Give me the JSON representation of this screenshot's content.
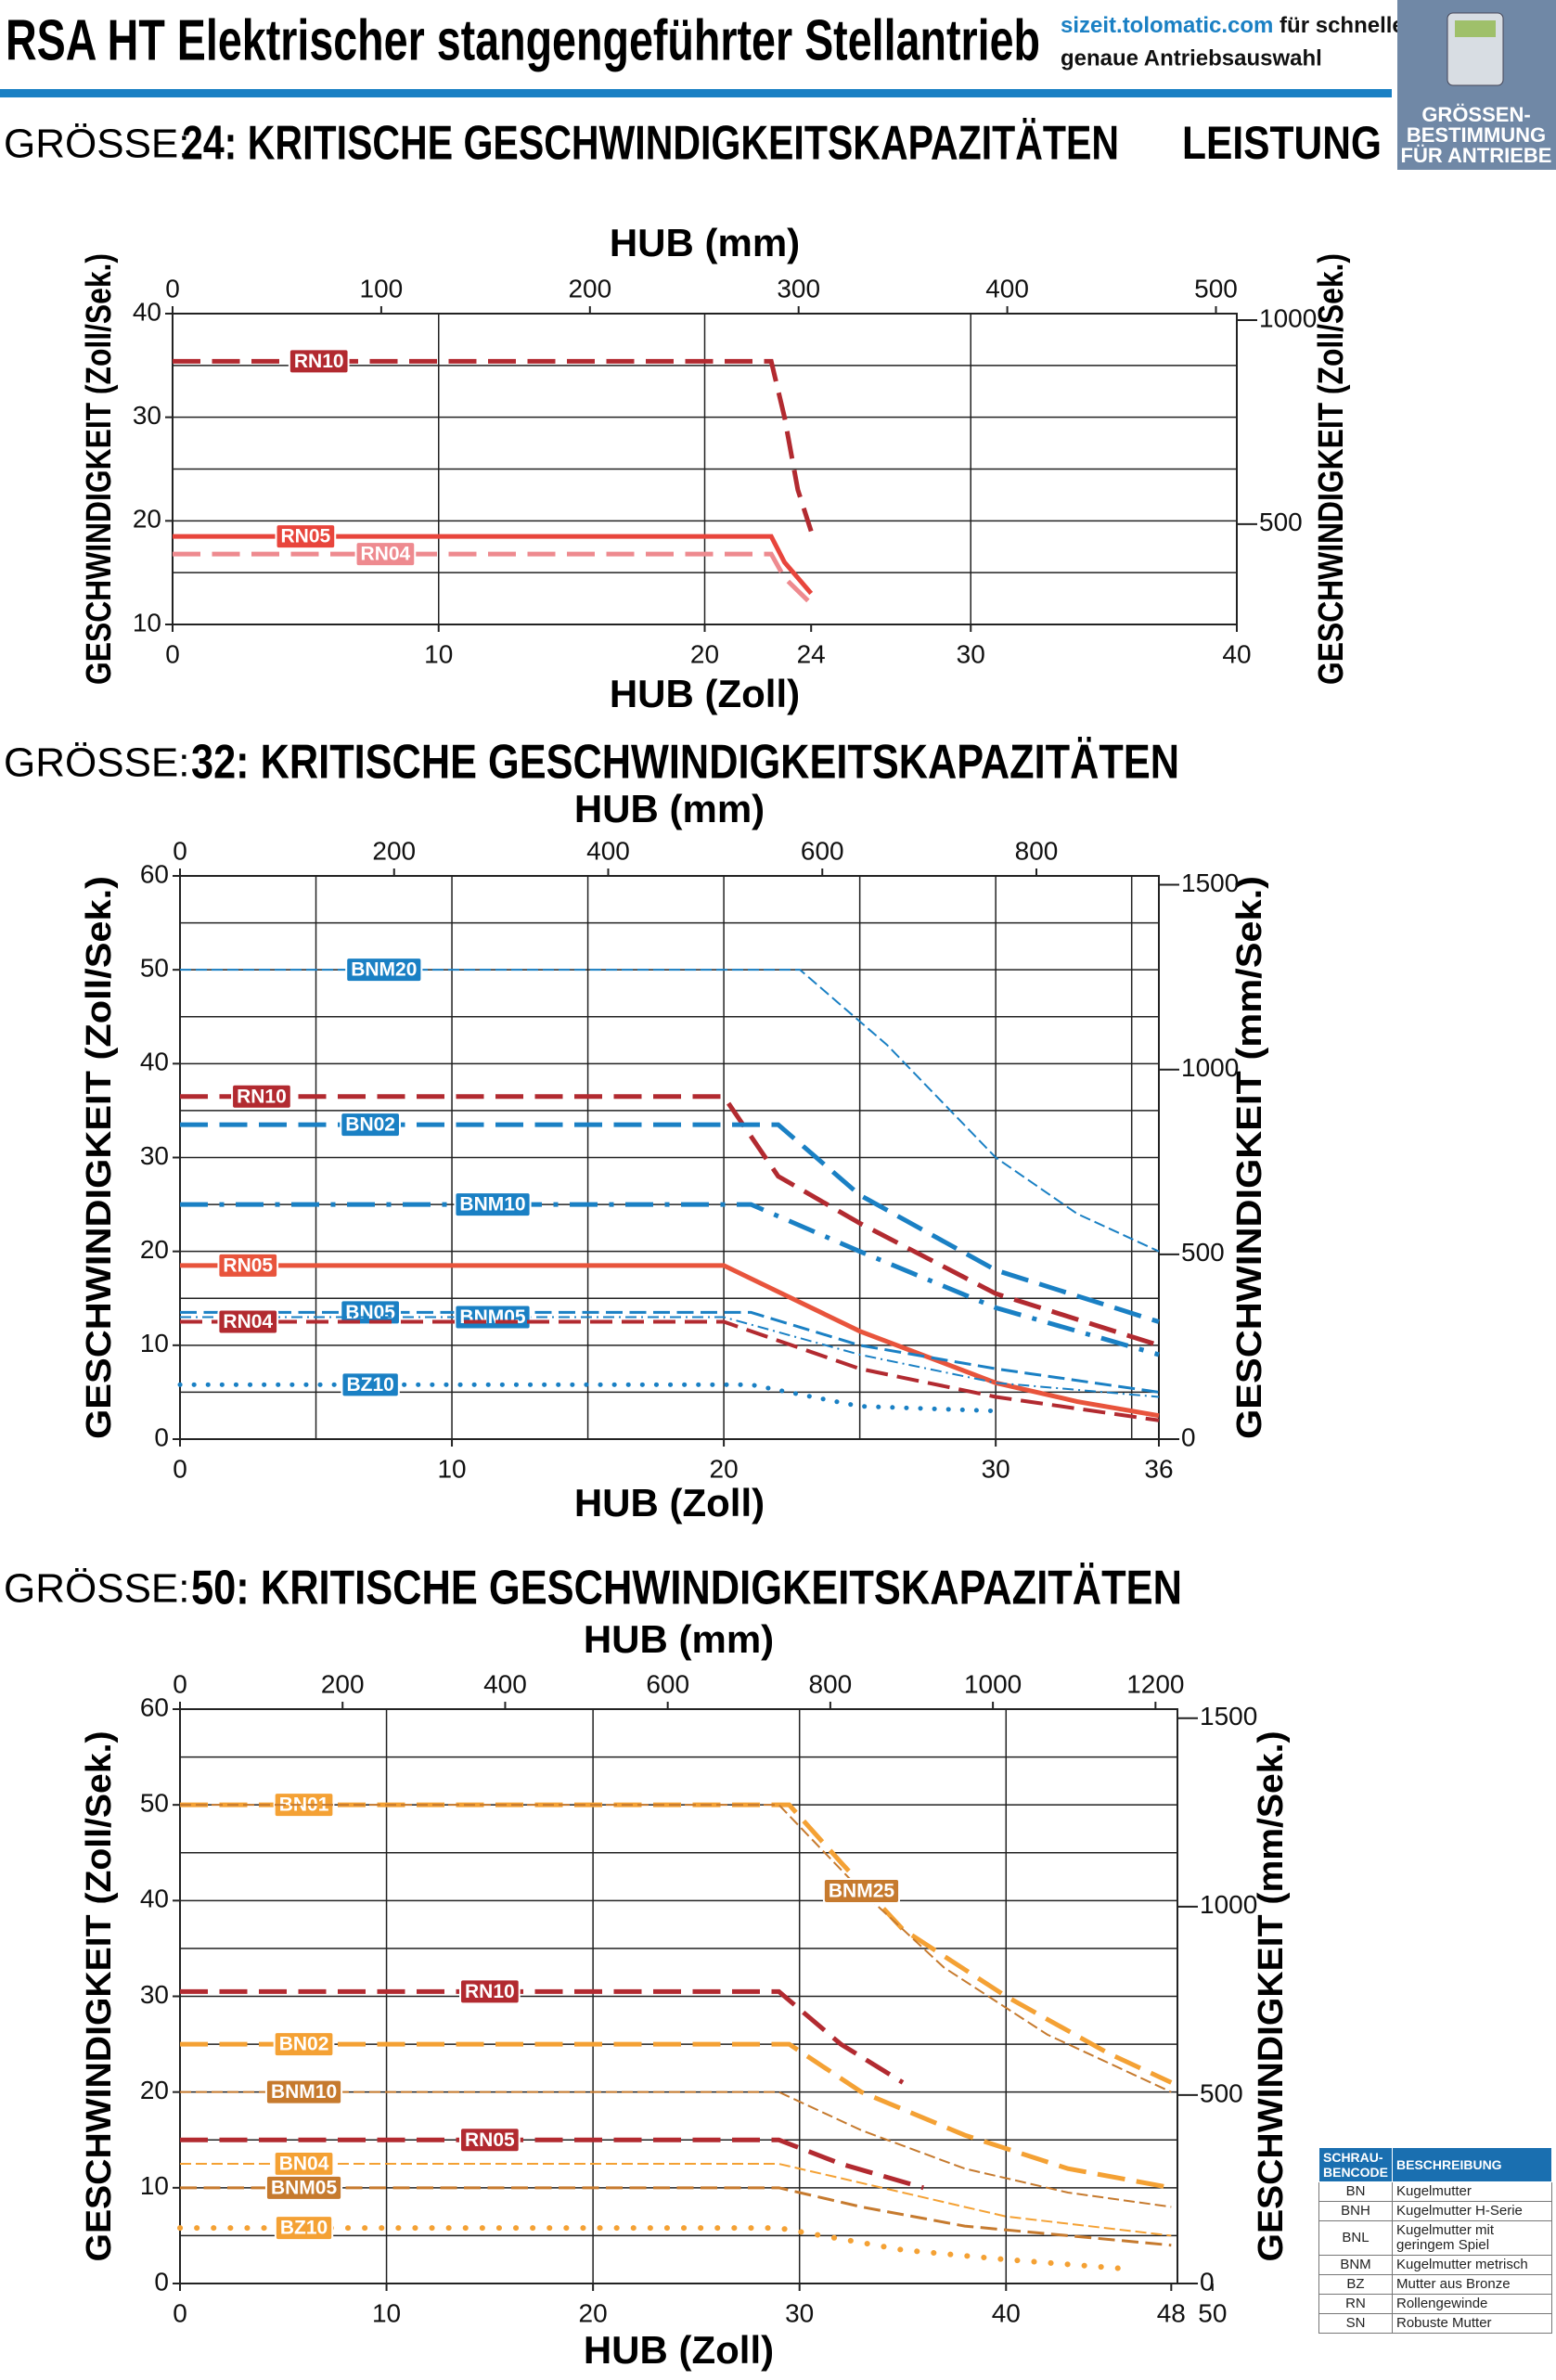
{
  "header": {
    "title": "RSA HT Elektrischer stangengeführter Stellantrieb",
    "link": "sizeit.tolomatic.com",
    "link_text": " für schnelle,",
    "link_text2": "genaue Antriebsauswahl",
    "badge": [
      "GRÖSSEN-",
      "BESTIMMUNG",
      "FÜR ANTRIEBE"
    ],
    "section": "LEISTUNG"
  },
  "chart_data": [
    {
      "type": "line",
      "size_label": "GRÖSSE:",
      "title": "24: KRITISCHE GESCHWINDIGKEITSKAPAZITÄTEN",
      "x_label_top": "HUB (mm)",
      "x_label": "HUB (Zoll)",
      "y_label": "GESCHWINDIGKEIT (Zoll/Sek.)",
      "y2_label": "GESCHWINDIGKEIT (Zoll/Sek.)",
      "xlim": [
        0,
        40
      ],
      "xticks": [
        0,
        10,
        20,
        24,
        30,
        40
      ],
      "x2lim": [
        0,
        510
      ],
      "x2ticks": [
        0,
        100,
        200,
        300,
        400,
        500
      ],
      "ylim": [
        10,
        40
      ],
      "yticks": [
        10,
        20,
        30,
        40
      ],
      "y2lim": [
        254,
        1016
      ],
      "y2ticks": [
        500,
        1000
      ],
      "xgrid": [
        10,
        20,
        30
      ],
      "ygrid": [
        15,
        20,
        25,
        30,
        35
      ],
      "series": [
        {
          "name": "RN10",
          "color": "#b22a30",
          "style": "dashed",
          "width": 5,
          "x": [
            0,
            22.5,
            23,
            23.5,
            24
          ],
          "values": [
            35.4,
            35.4,
            30,
            23,
            19
          ]
        },
        {
          "name": "RN05",
          "color": "#e8453c",
          "style": "solid",
          "width": 5,
          "x": [
            0,
            22.5,
            23,
            24
          ],
          "values": [
            18.5,
            18.5,
            16,
            13
          ]
        },
        {
          "name": "RN04",
          "color": "#ee8a8f",
          "style": "dashed",
          "width": 5,
          "x": [
            0,
            22.5,
            23,
            24
          ],
          "values": [
            16.8,
            16.8,
            14.5,
            12
          ]
        }
      ]
    },
    {
      "type": "line",
      "size_label": "GRÖSSE:",
      "title": "32: KRITISCHE GESCHWINDIGKEITSKAPAZITÄTEN",
      "x_label_top": "HUB (mm)",
      "x_label": "HUB (Zoll)",
      "y_label": "GESCHWINDIGKEIT (Zoll/Sek.)",
      "y2_label": "GESCHWINDIGKEIT (mm/Sek.)",
      "xlim": [
        0,
        36
      ],
      "xticks": [
        0,
        10,
        20,
        30,
        36
      ],
      "x2lim": [
        0,
        914.4
      ],
      "x2ticks": [
        0,
        200,
        400,
        600,
        800
      ],
      "ylim": [
        0,
        60
      ],
      "yticks": [
        0,
        10,
        20,
        30,
        40,
        50,
        60
      ],
      "y2lim": [
        0,
        1524
      ],
      "y2ticks": [
        0,
        500,
        1000,
        1500
      ],
      "xgrid": [
        5,
        10,
        15,
        20,
        25,
        30,
        35
      ],
      "ygrid": [
        5,
        10,
        15,
        20,
        25,
        30,
        35,
        40,
        45,
        50,
        55
      ],
      "series": [
        {
          "name": "BNM20",
          "color": "#1a80c4",
          "style": "dashed",
          "width": 2,
          "x": [
            0,
            22.8,
            26,
            30,
            33,
            36
          ],
          "values": [
            50,
            50,
            42,
            30,
            24,
            20
          ]
        },
        {
          "name": "RN10",
          "color": "#b22a30",
          "style": "dashed",
          "width": 5,
          "x": [
            0,
            20,
            22,
            25,
            30,
            36
          ],
          "values": [
            36.5,
            36.5,
            28,
            23,
            15.5,
            10
          ]
        },
        {
          "name": "BN02",
          "color": "#1a80c4",
          "style": "dashed",
          "width": 5,
          "x": [
            0,
            22,
            25,
            30,
            36
          ],
          "values": [
            33.5,
            33.5,
            26,
            18,
            12.5
          ]
        },
        {
          "name": "BNM10",
          "color": "#1a80c4",
          "style": "dashdot",
          "width": 5,
          "x": [
            0,
            21,
            25,
            30,
            36
          ],
          "values": [
            25,
            25,
            20,
            14,
            9
          ]
        },
        {
          "name": "RN05",
          "color": "#e8543c",
          "style": "solid",
          "width": 5,
          "x": [
            0,
            20,
            25,
            30,
            33,
            36
          ],
          "values": [
            18.5,
            18.5,
            11.5,
            6,
            4,
            2.5
          ]
        },
        {
          "name": "BN05",
          "color": "#1a80c4",
          "style": "dashed",
          "width": 3,
          "x": [
            0,
            21,
            25,
            30,
            36
          ],
          "values": [
            13.5,
            13.5,
            10,
            7.5,
            5
          ]
        },
        {
          "name": "BNM05",
          "color": "#1a80c4",
          "style": "dashdot",
          "width": 2,
          "x": [
            0,
            20,
            25,
            30,
            36
          ],
          "values": [
            13,
            13,
            9,
            6,
            4.5
          ]
        },
        {
          "name": "RN04",
          "color": "#b22a30",
          "style": "dashed",
          "width": 4,
          "x": [
            0,
            20,
            25,
            30,
            36
          ],
          "values": [
            12.5,
            12.5,
            7.5,
            4.5,
            2
          ]
        },
        {
          "name": "BZ10",
          "color": "#1a80c4",
          "style": "dotted",
          "width": 5,
          "x": [
            0,
            21,
            25,
            30
          ],
          "values": [
            5.8,
            5.8,
            3.5,
            3
          ]
        }
      ]
    },
    {
      "type": "line",
      "size_label": "GRÖSSE:",
      "title": "50: KRITISCHE GESCHWINDIGKEITSKAPAZITÄTEN",
      "x_label_top": "HUB (mm)",
      "x_label": "HUB (Zoll)",
      "y_label": "GESCHWINDIGKEIT (Zoll/Sek.)",
      "y2_label": "GESCHWINDIGKEIT (mm/Sek.)",
      "xlim": [
        0,
        48.3
      ],
      "xticks": [
        0,
        10,
        20,
        30,
        40,
        48,
        50
      ],
      "x2lim": [
        0,
        1227
      ],
      "x2ticks": [
        0,
        200,
        400,
        600,
        800,
        1000,
        1200
      ],
      "ylim": [
        0,
        60
      ],
      "yticks": [
        0,
        10,
        20,
        30,
        40,
        50,
        60
      ],
      "y2lim": [
        0,
        1524
      ],
      "y2ticks": [
        0,
        500,
        1000,
        1500
      ],
      "xgrid": [
        10,
        20,
        30,
        40
      ],
      "ygrid": [
        5,
        10,
        15,
        20,
        25,
        30,
        35,
        40,
        45,
        50,
        55
      ],
      "series": [
        {
          "name": "BN01",
          "color": "#f4a134",
          "style": "dashed",
          "width": 5,
          "x": [
            0,
            29.5,
            32,
            35,
            40,
            45,
            48
          ],
          "values": [
            50,
            50,
            44,
            37,
            30,
            24,
            21
          ]
        },
        {
          "name": "BNM25",
          "color": "#c67a2e",
          "style": "dashed",
          "width": 2,
          "x": [
            0,
            29,
            33,
            37,
            42,
            48
          ],
          "values": [
            50,
            50,
            41,
            33,
            26,
            20
          ]
        },
        {
          "name": "RN10",
          "color": "#b22a30",
          "style": "dashed",
          "width": 5,
          "x": [
            0,
            29,
            32,
            35
          ],
          "values": [
            30.5,
            30.5,
            25,
            21
          ]
        },
        {
          "name": "BN02",
          "color": "#f4a134",
          "style": "dashed",
          "width": 5,
          "x": [
            0,
            29.5,
            33,
            38,
            43,
            48
          ],
          "values": [
            25,
            25,
            20,
            15.5,
            12,
            10
          ]
        },
        {
          "name": "BNM10",
          "color": "#c67a2e",
          "style": "dashed",
          "width": 2,
          "x": [
            0,
            29,
            33,
            38,
            43,
            48
          ],
          "values": [
            20,
            20,
            16,
            12,
            9.5,
            8
          ]
        },
        {
          "name": "RN05",
          "color": "#b22a30",
          "style": "dashed",
          "width": 5,
          "x": [
            0,
            29,
            32,
            36
          ],
          "values": [
            15,
            15,
            12.5,
            10
          ]
        },
        {
          "name": "BN04",
          "color": "#f4a134",
          "style": "dashed",
          "width": 2,
          "x": [
            0,
            29,
            35,
            40,
            48
          ],
          "values": [
            12.5,
            12.5,
            9.5,
            7,
            5
          ]
        },
        {
          "name": "BNM05",
          "color": "#c67a2e",
          "style": "dashed",
          "width": 3,
          "x": [
            0,
            29,
            33,
            38,
            43,
            48
          ],
          "values": [
            10,
            10,
            8,
            6,
            5,
            4
          ]
        },
        {
          "name": "BZ10",
          "color": "#f4a134",
          "style": "dotted",
          "width": 6,
          "x": [
            0,
            29,
            35,
            40,
            46
          ],
          "values": [
            5.8,
            5.8,
            3.5,
            2.5,
            1.5
          ]
        }
      ]
    }
  ],
  "table": {
    "header": [
      "SCHRAU-BENCODE",
      "BESCHREIBUNG"
    ],
    "rows": [
      [
        "BN",
        "Kugelmutter"
      ],
      [
        "BNH",
        "Kugelmutter H-Serie"
      ],
      [
        "BNL",
        "Kugelmutter mit geringem Spiel"
      ],
      [
        "BNM",
        "Kugelmutter metrisch"
      ],
      [
        "BZ",
        "Mutter aus Bronze"
      ],
      [
        "RN",
        "Rollengewinde"
      ],
      [
        "SN",
        "Robuste Mutter"
      ]
    ]
  }
}
